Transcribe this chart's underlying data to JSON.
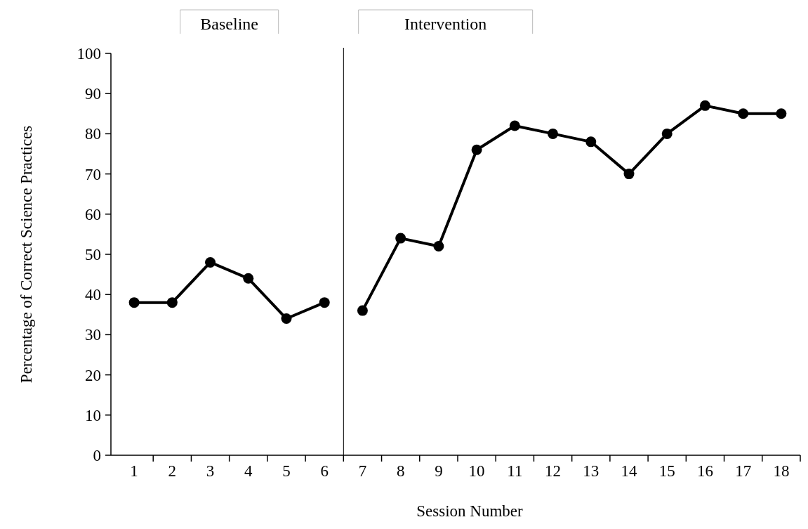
{
  "chart_data": {
    "type": "line",
    "xlabel": "Session Number",
    "ylabel": "Percentage of Correct Science Practices",
    "annotations": [
      "Baseline",
      "Intervention"
    ],
    "series": [
      {
        "color": "#000000",
        "x": [
          1,
          2,
          3,
          4,
          5,
          6
        ],
        "values": [
          38,
          38,
          48,
          44,
          34,
          38
        ]
      },
      {
        "color": "#000000",
        "x": [
          7,
          8,
          9,
          10,
          11,
          12,
          13,
          14,
          15,
          16,
          17,
          18
        ],
        "values": [
          36,
          54,
          52,
          76,
          82,
          80,
          78,
          70,
          80,
          87,
          85,
          85
        ]
      }
    ],
    "xlim": [
      0.5,
      18.5
    ],
    "xticks": [
      1,
      2,
      3,
      4,
      5,
      6,
      7,
      8,
      9,
      10,
      11,
      12,
      13,
      14,
      15,
      16,
      17,
      18,
      {
        "value": 1.5,
        "label": null
      },
      {
        "value": 2.5,
        "label": null
      },
      {
        "value": 3.5,
        "label": null
      },
      {
        "value": 4.5,
        "label": null
      },
      {
        "value": 5.5,
        "label": null
      },
      {
        "value": 6.5,
        "label": null
      },
      {
        "value": 7.5,
        "label": null
      },
      {
        "value": 8.5,
        "label": null
      },
      {
        "value": 9.5,
        "label": null
      },
      {
        "value": 10.5,
        "label": null
      },
      {
        "value": 11.5,
        "label": null
      },
      {
        "value": 12.5,
        "label": null
      },
      {
        "value": 13.5,
        "label": null
      },
      {
        "value": 14.5,
        "label": null
      },
      {
        "value": 15.5,
        "label": null
      },
      {
        "value": 16.5,
        "label": null
      },
      {
        "value": 17.5,
        "label": null
      },
      {
        "value": 18.5,
        "label": null
      }
    ],
    "ylim": [
      0,
      100
    ],
    "yticks": [
      0,
      10,
      20,
      30,
      40,
      50,
      60,
      70,
      80,
      90,
      100
    ],
    "ref_lines": [
      {
        "axis": "x",
        "value": 6.5,
        "color": "#000000"
      }
    ],
    "grid": false,
    "marker": "circle",
    "line_style": "solid"
  }
}
